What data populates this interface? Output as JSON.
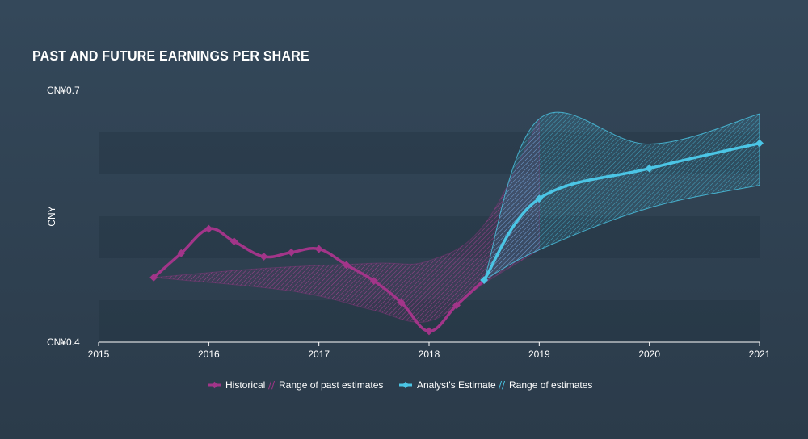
{
  "chart_data": {
    "type": "line",
    "title": "PAST AND FUTURE EARNINGS PER SHARE",
    "ylabel": "CNY",
    "xlabel": "",
    "ylim": [
      0.4,
      0.7
    ],
    "y_ticks": [
      {
        "value": 0.7,
        "label": "CN¥0.7"
      },
      {
        "value": 0.4,
        "label": "CN¥0.4"
      }
    ],
    "xlim": [
      2015,
      2021
    ],
    "x_ticks": [
      {
        "value": 2015,
        "label": "2015"
      },
      {
        "value": 2016,
        "label": "2016"
      },
      {
        "value": 2017,
        "label": "2017"
      },
      {
        "value": 2018,
        "label": "2018"
      },
      {
        "value": 2019,
        "label": "2019"
      },
      {
        "value": 2020,
        "label": "2020"
      },
      {
        "value": 2021,
        "label": "2021"
      }
    ],
    "series": [
      {
        "name": "Historical",
        "color": "#a23589",
        "points": [
          {
            "x": 2015.5,
            "y": 0.477
          },
          {
            "x": 2015.75,
            "y": 0.506
          },
          {
            "x": 2016.0,
            "y": 0.535
          },
          {
            "x": 2016.23,
            "y": 0.52
          },
          {
            "x": 2016.5,
            "y": 0.502
          },
          {
            "x": 2016.75,
            "y": 0.507
          },
          {
            "x": 2017.0,
            "y": 0.511
          },
          {
            "x": 2017.25,
            "y": 0.492
          },
          {
            "x": 2017.5,
            "y": 0.473
          },
          {
            "x": 2017.75,
            "y": 0.447
          },
          {
            "x": 2018.0,
            "y": 0.413
          },
          {
            "x": 2018.25,
            "y": 0.444
          },
          {
            "x": 2018.5,
            "y": 0.474
          }
        ]
      },
      {
        "name": "Analyst's Estimate",
        "color": "#4bc5e5",
        "points": [
          {
            "x": 2018.5,
            "y": 0.474
          },
          {
            "x": 2019.0,
            "y": 0.571
          },
          {
            "x": 2020.0,
            "y": 0.607
          },
          {
            "x": 2021.0,
            "y": 0.637
          }
        ]
      }
    ],
    "ranges": [
      {
        "name": "Range of past estimates",
        "color": "#a23589",
        "upper": [
          {
            "x": 2015.5,
            "y": 0.477
          },
          {
            "x": 2016.5,
            "y": 0.488
          },
          {
            "x": 2017.5,
            "y": 0.494
          },
          {
            "x": 2018.0,
            "y": 0.497
          },
          {
            "x": 2018.5,
            "y": 0.54
          },
          {
            "x": 2019.0,
            "y": 0.665
          }
        ],
        "lower": [
          {
            "x": 2015.5,
            "y": 0.477
          },
          {
            "x": 2016.5,
            "y": 0.465
          },
          {
            "x": 2017.0,
            "y": 0.455
          },
          {
            "x": 2017.5,
            "y": 0.438
          },
          {
            "x": 2018.0,
            "y": 0.425
          },
          {
            "x": 2018.5,
            "y": 0.47
          },
          {
            "x": 2019.0,
            "y": 0.51
          }
        ]
      },
      {
        "name": "Range of estimates",
        "color": "#4bc5e5",
        "upper": [
          {
            "x": 2018.5,
            "y": 0.474
          },
          {
            "x": 2019.0,
            "y": 0.666
          },
          {
            "x": 2020.0,
            "y": 0.636
          },
          {
            "x": 2021.0,
            "y": 0.672
          }
        ],
        "lower": [
          {
            "x": 2018.5,
            "y": 0.474
          },
          {
            "x": 2019.0,
            "y": 0.51
          },
          {
            "x": 2020.0,
            "y": 0.56
          },
          {
            "x": 2021.0,
            "y": 0.587
          }
        ]
      }
    ],
    "legend": {
      "position": "bottom-center",
      "items": [
        {
          "label": "Historical",
          "kind": "line",
          "color": "#a23589"
        },
        {
          "label": "Range of past estimates",
          "kind": "range",
          "color": "#a23589"
        },
        {
          "label": "Analyst's Estimate",
          "kind": "line",
          "color": "#4bc5e5"
        },
        {
          "label": "Range of estimates",
          "kind": "range",
          "color": "#4bc5e5"
        }
      ]
    }
  }
}
